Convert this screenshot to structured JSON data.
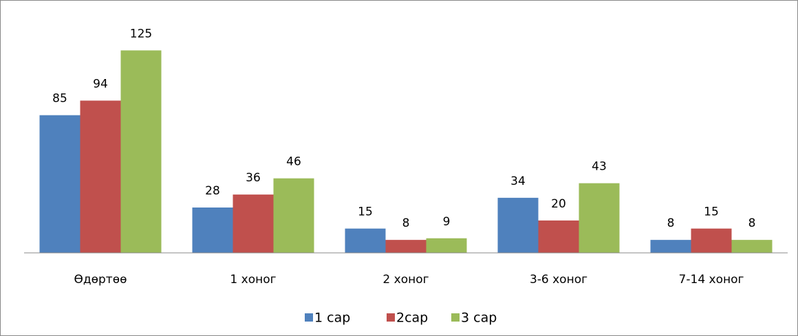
{
  "chart_data": {
    "type": "bar",
    "categories": [
      "Өдөртөө",
      "1 хоног",
      "2 хоног",
      "3-6 хоног",
      "7-14 хоног"
    ],
    "series": [
      {
        "name": "1 сар",
        "color": "#4f81bd",
        "values": [
          85,
          28,
          15,
          34,
          8
        ]
      },
      {
        "name": "2сар",
        "color": "#c0504d",
        "values": [
          94,
          36,
          8,
          20,
          15
        ]
      },
      {
        "name": "3 сар",
        "color": "#9bbb59",
        "values": [
          125,
          46,
          9,
          43,
          8
        ]
      }
    ],
    "ylim": [
      0,
      140
    ],
    "legend": "bottom"
  }
}
